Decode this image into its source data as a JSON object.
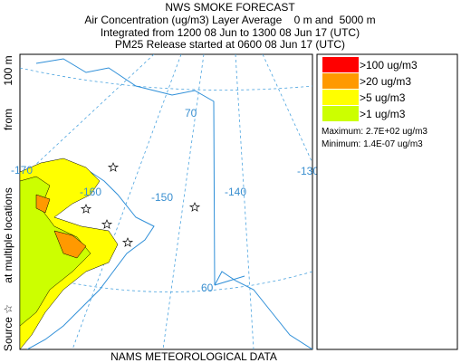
{
  "header": {
    "title": "NWS SMOKE FORECAST",
    "lines": [
      "Air Concentration (ug/m3) Layer Average    0 m and  5000 m",
      "Integrated from 1200 08 Jun to 1300 08 Jun 17 (UTC)",
      "PM25 Release started at 0600 08 Jun 17 (UTC)"
    ]
  },
  "side_label": [
    "Source ☆",
    "at multiple locations",
    "from",
    "100 m"
  ],
  "map": {
    "grid_labels": [
      "70",
      "-170",
      "-160",
      "-150",
      "-140",
      "-130",
      "60"
    ]
  },
  "legend": {
    "entries": [
      {
        "label": ">100 ug/m3",
        "color": "#ff0000"
      },
      {
        "label": ">20 ug/m3",
        "color": "#ff9900"
      },
      {
        "label": ">5 ug/m3",
        "color": "#ffff00"
      },
      {
        "label": ">1 ug/m3",
        "color": "#ccff00"
      }
    ],
    "maximum": "Maximum: 2.7E+02 ug/m3",
    "minimum": "Minimum: 1.4E-07 ug/m3"
  },
  "footer": "NAMS METEOROLOGICAL DATA"
}
